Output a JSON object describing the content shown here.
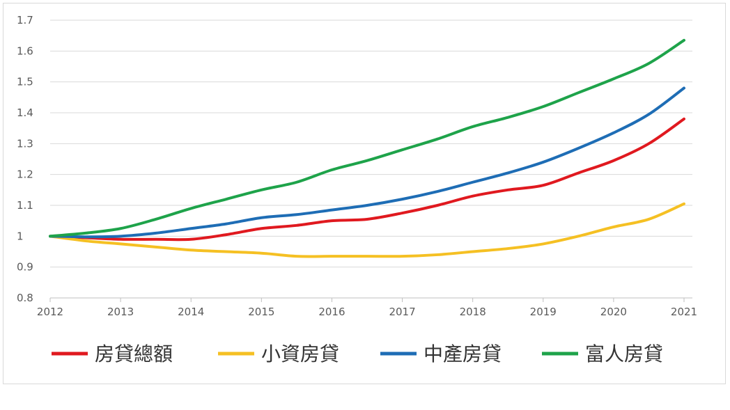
{
  "chart_data": {
    "type": "line",
    "title": "",
    "xlabel": "",
    "ylabel": "",
    "xlim": [
      2012,
      2021
    ],
    "ylim": [
      0.8,
      1.7
    ],
    "x_ticks": [
      "2012",
      "2013",
      "2014",
      "2015",
      "2016",
      "2017",
      "2018",
      "2019",
      "2020",
      "2021"
    ],
    "y_ticks": [
      "0.8",
      "0.9",
      "1",
      "1.1",
      "1.2",
      "1.3",
      "1.4",
      "1.5",
      "1.6",
      "1.7"
    ],
    "grid": "horizontal",
    "legend": "bottom",
    "x": [
      2012,
      2012.5,
      2013,
      2013.5,
      2014,
      2014.5,
      2015,
      2015.5,
      2016,
      2016.5,
      2017,
      2017.5,
      2018,
      2018.5,
      2019,
      2019.5,
      2020,
      2020.5,
      2021
    ],
    "series": [
      {
        "name": "房貸總額",
        "color": "#e0191f",
        "values": [
          1.0,
          0.995,
          0.99,
          0.99,
          0.99,
          1.005,
          1.025,
          1.035,
          1.05,
          1.055,
          1.075,
          1.1,
          1.13,
          1.15,
          1.165,
          1.205,
          1.245,
          1.3,
          1.38
        ]
      },
      {
        "name": "小資房貸",
        "color": "#f5c023",
        "values": [
          1.0,
          0.985,
          0.975,
          0.965,
          0.955,
          0.95,
          0.945,
          0.935,
          0.935,
          0.935,
          0.935,
          0.94,
          0.95,
          0.96,
          0.975,
          1.0,
          1.03,
          1.055,
          1.105
        ]
      },
      {
        "name": "中產房貸",
        "color": "#1e6db5",
        "values": [
          1.0,
          0.998,
          1.0,
          1.01,
          1.025,
          1.04,
          1.06,
          1.07,
          1.085,
          1.1,
          1.12,
          1.145,
          1.175,
          1.205,
          1.24,
          1.285,
          1.335,
          1.395,
          1.48
        ]
      },
      {
        "name": "富人房貸",
        "color": "#1ea34a",
        "values": [
          1.0,
          1.01,
          1.025,
          1.055,
          1.09,
          1.12,
          1.15,
          1.175,
          1.215,
          1.245,
          1.28,
          1.315,
          1.355,
          1.385,
          1.42,
          1.465,
          1.51,
          1.56,
          1.635
        ]
      }
    ]
  }
}
